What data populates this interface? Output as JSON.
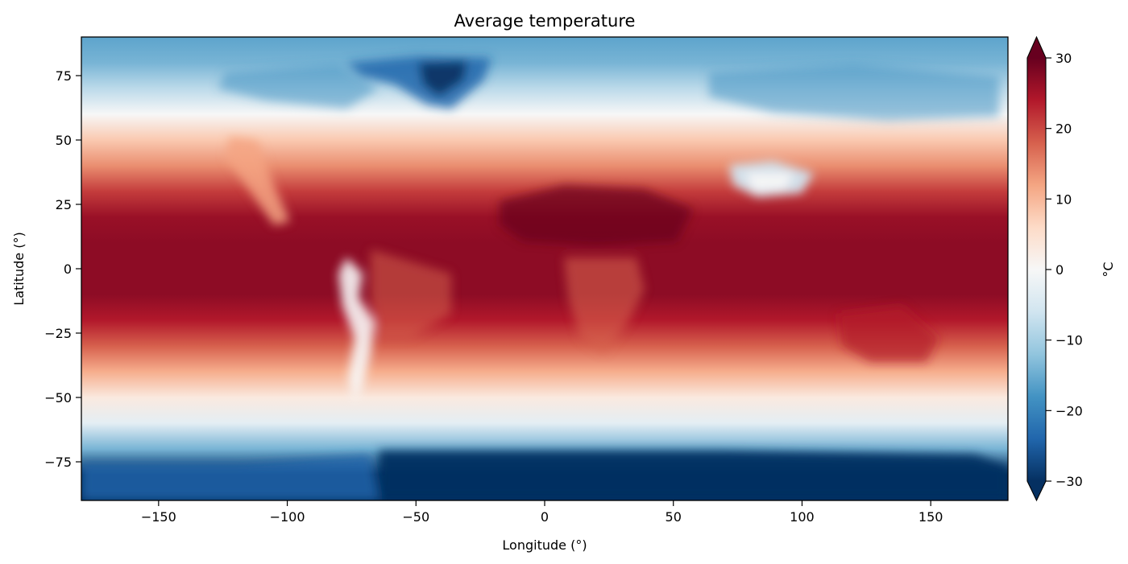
{
  "chart_data": {
    "type": "heatmap",
    "title": "Average temperature",
    "xlabel": "Longitude (°)",
    "ylabel": "Latitude (°)",
    "xlim": [
      -180,
      180
    ],
    "ylim": [
      -90,
      90
    ],
    "x_ticks": [
      -150,
      -100,
      -50,
      0,
      50,
      100,
      150
    ],
    "y_ticks": [
      -75,
      -50,
      -25,
      0,
      25,
      50,
      75
    ],
    "x_tick_labels": [
      "−150",
      "−100",
      "−50",
      "0",
      "50",
      "100",
      "150"
    ],
    "y_tick_labels": [
      "−75",
      "−50",
      "−25",
      "0",
      "25",
      "50",
      "75"
    ],
    "grid": false,
    "colormap": "RdBu_r",
    "colorbar": {
      "label": "°C",
      "vmin": -30,
      "vmax": 30,
      "extend": "both",
      "ticks": [
        -30,
        -20,
        -10,
        0,
        10,
        20,
        30
      ],
      "tick_labels": [
        "−30",
        "−20",
        "−10",
        "0",
        "10",
        "20",
        "30"
      ],
      "colors": [
        "#053061",
        "#2166ac",
        "#4393c3",
        "#92c5de",
        "#d1e5f0",
        "#f7f7f7",
        "#fddbc7",
        "#f4a582",
        "#d6604d",
        "#b2182b",
        "#67001f"
      ],
      "placement": "right"
    },
    "zonal_mean": {
      "latitude": [
        -90,
        -80,
        -70,
        -60,
        -50,
        -40,
        -30,
        -20,
        -10,
        0,
        10,
        20,
        30,
        40,
        50,
        60,
        70,
        80,
        90
      ],
      "temperature": [
        -30,
        -30,
        -14,
        -3,
        3,
        11,
        18,
        24,
        27,
        27,
        27,
        26,
        21,
        14,
        8,
        0,
        -8,
        -14,
        -16
      ]
    }
  }
}
